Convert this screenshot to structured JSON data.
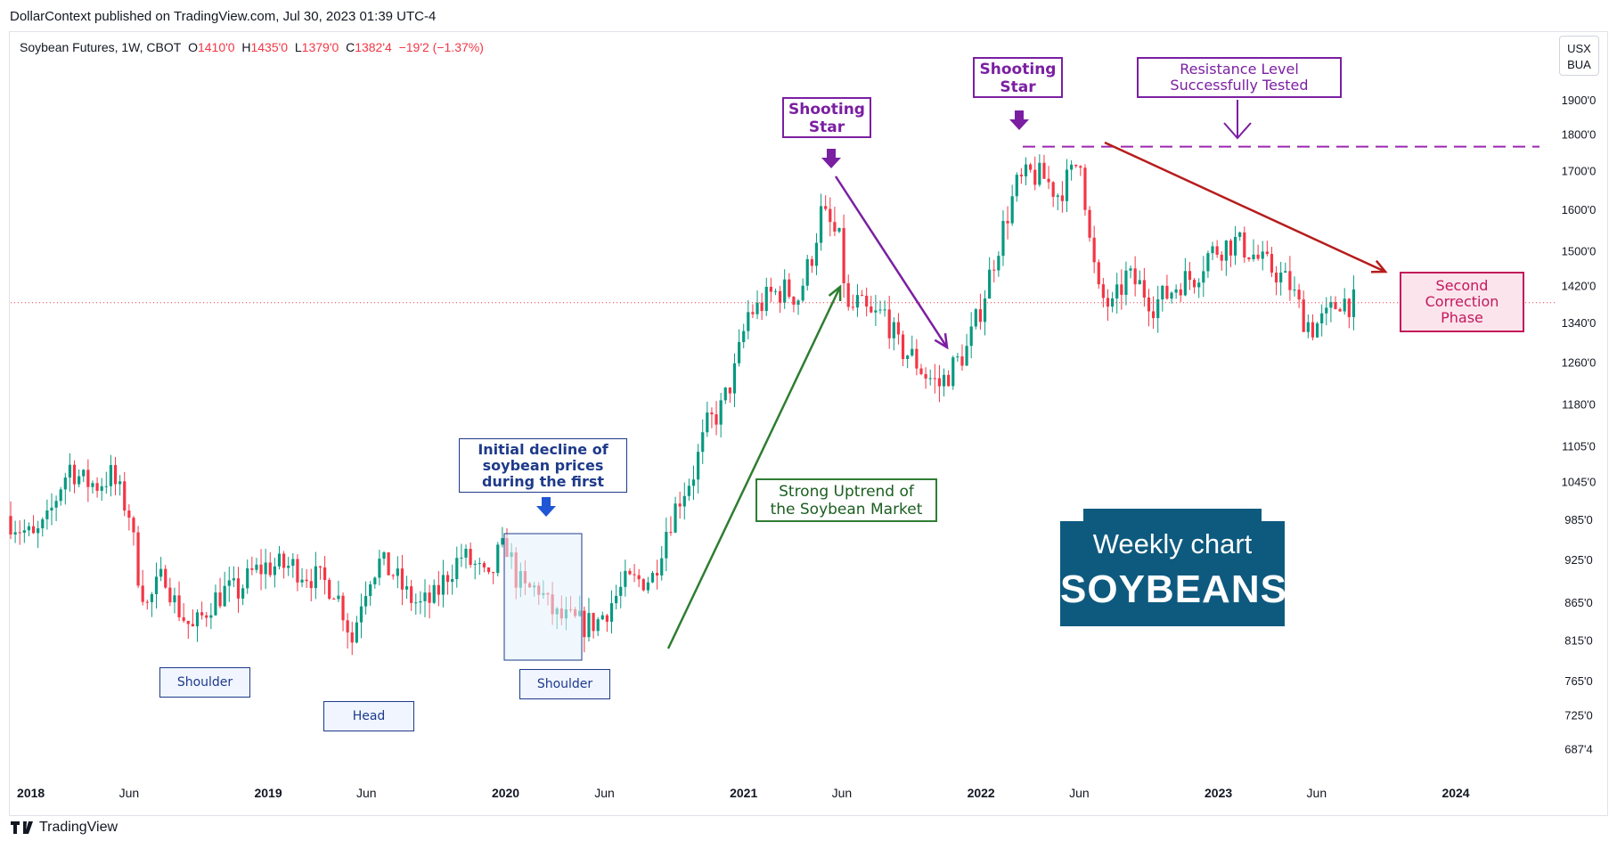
{
  "header": {
    "published_line": "DollarContext published on TradingView.com, Jul 30, 2023 01:39 UTC-4"
  },
  "legend": {
    "symbol": "Soybean Futures, 1W, CBOT",
    "open_label": "O",
    "open_value": "1410'0",
    "high_label": "H",
    "high_value": "1435'0",
    "low_label": "L",
    "low_value": "1379'0",
    "close_label": "C",
    "close_value": "1382'4",
    "change": "−19'2 (−1.37%)"
  },
  "currency": {
    "line1": "USX",
    "line2": "BUA"
  },
  "footer": {
    "brand": "TradingView"
  },
  "annotations": {
    "shooting_star_1": "Shooting Star",
    "shooting_star_2": "Shooting Star",
    "resistance": "Resistance Level Successfully Tested",
    "second_correction": "Second Correction Phase",
    "initial_decline": "Initial decline of soybean prices during the first",
    "strong_uptrend": "Strong Uptrend of the Soybean Market",
    "shoulder_left": "Shoulder",
    "head": "Head",
    "shoulder_right": "Shoulder",
    "brand_line1": "Weekly chart",
    "brand_line2": "SOYBEANS"
  },
  "colors": {
    "up": "#089981",
    "down": "#f23645",
    "purple": "#7b1fa2",
    "green": "#2e7d32",
    "red_arrow": "#b71c1c",
    "navy": "#0e5a7f",
    "blue_box": "#1e3a8a"
  },
  "chart_data": {
    "type": "candlestick",
    "title": "Soybean Futures, 1W, CBOT",
    "y_scale": "log",
    "ylim": [
      660,
      2000
    ],
    "y_ticks": [
      {
        "value": 1900,
        "label": "1900'0"
      },
      {
        "value": 1800,
        "label": "1800'0"
      },
      {
        "value": 1700,
        "label": "1700'0"
      },
      {
        "value": 1600,
        "label": "1600'0"
      },
      {
        "value": 1500,
        "label": "1500'0"
      },
      {
        "value": 1420,
        "label": "1420'0"
      },
      {
        "value": 1340,
        "label": "1340'0"
      },
      {
        "value": 1260,
        "label": "1260'0"
      },
      {
        "value": 1180,
        "label": "1180'0"
      },
      {
        "value": 1105,
        "label": "1105'0"
      },
      {
        "value": 1045,
        "label": "1045'0"
      },
      {
        "value": 985,
        "label": "985'0"
      },
      {
        "value": 925,
        "label": "925'0"
      },
      {
        "value": 865,
        "label": "865'0"
      },
      {
        "value": 815,
        "label": "815'0"
      },
      {
        "value": 765,
        "label": "765'0"
      },
      {
        "value": 725,
        "label": "725'0"
      },
      {
        "value": 687.5,
        "label": "687'4"
      }
    ],
    "x_ticks": [
      {
        "date": "2018-01-01",
        "label": "2018"
      },
      {
        "date": "2018-06-01",
        "label": "Jun"
      },
      {
        "date": "2019-01-01",
        "label": "2019"
      },
      {
        "date": "2019-06-01",
        "label": "Jun"
      },
      {
        "date": "2020-01-01",
        "label": "2020"
      },
      {
        "date": "2020-06-01",
        "label": "Jun"
      },
      {
        "date": "2021-01-01",
        "label": "2021"
      },
      {
        "date": "2021-06-01",
        "label": "Jun"
      },
      {
        "date": "2022-01-01",
        "label": "2022"
      },
      {
        "date": "2022-06-01",
        "label": "Jun"
      },
      {
        "date": "2023-01-01",
        "label": "2023"
      },
      {
        "date": "2023-06-01",
        "label": "Jun"
      },
      {
        "date": "2024-01-01",
        "label": "2024"
      }
    ],
    "xlim": [
      "2017-12-01",
      "2024-06-01"
    ],
    "last_price": 1382.5,
    "resistance_level": 1765,
    "price_path": [
      [
        "2017-12-01",
        990
      ],
      [
        "2017-12-22",
        972
      ],
      [
        "2018-01-12",
        955
      ],
      [
        "2018-02-02",
        980
      ],
      [
        "2018-02-23",
        1040
      ],
      [
        "2018-03-09",
        1070
      ],
      [
        "2018-03-30",
        1045
      ],
      [
        "2018-04-20",
        1040
      ],
      [
        "2018-05-11",
        1055
      ],
      [
        "2018-05-25",
        1025
      ],
      [
        "2018-06-08",
        995
      ],
      [
        "2018-06-22",
        905
      ],
      [
        "2018-07-06",
        860
      ],
      [
        "2018-07-20",
        885
      ],
      [
        "2018-08-03",
        905
      ],
      [
        "2018-08-17",
        865
      ],
      [
        "2018-08-31",
        845
      ],
      [
        "2018-09-14",
        828
      ],
      [
        "2018-09-28",
        845
      ],
      [
        "2018-10-12",
        865
      ],
      [
        "2018-11-02",
        880
      ],
      [
        "2018-11-23",
        880
      ],
      [
        "2018-12-14",
        905
      ],
      [
        "2019-01-04",
        915
      ],
      [
        "2019-01-25",
        915
      ],
      [
        "2019-02-15",
        915
      ],
      [
        "2019-03-08",
        905
      ],
      [
        "2019-03-29",
        895
      ],
      [
        "2019-04-19",
        885
      ],
      [
        "2019-05-03",
        855
      ],
      [
        "2019-05-17",
        815
      ],
      [
        "2019-05-31",
        870
      ],
      [
        "2019-06-14",
        905
      ],
      [
        "2019-06-28",
        920
      ],
      [
        "2019-07-19",
        905
      ],
      [
        "2019-08-09",
        875
      ],
      [
        "2019-08-30",
        860
      ],
      [
        "2019-09-20",
        870
      ],
      [
        "2019-10-11",
        905
      ],
      [
        "2019-11-01",
        930
      ],
      [
        "2019-11-22",
        915
      ],
      [
        "2019-12-13",
        890
      ],
      [
        "2019-12-27",
        930
      ],
      [
        "2020-01-10",
        945
      ],
      [
        "2020-01-24",
        900
      ],
      [
        "2020-02-07",
        880
      ],
      [
        "2020-02-28",
        885
      ],
      [
        "2020-03-13",
        860
      ],
      [
        "2020-03-27",
        845
      ],
      [
        "2020-04-17",
        840
      ],
      [
        "2020-05-08",
        835
      ],
      [
        "2020-05-29",
        840
      ],
      [
        "2020-06-19",
        865
      ],
      [
        "2020-07-10",
        890
      ],
      [
        "2020-07-31",
        895
      ],
      [
        "2020-08-21",
        900
      ],
      [
        "2020-09-11",
        970
      ],
      [
        "2020-10-02",
        1020
      ],
      [
        "2020-10-23",
        1060
      ],
      [
        "2020-11-13",
        1140
      ],
      [
        "2020-12-04",
        1170
      ],
      [
        "2020-12-25",
        1240
      ],
      [
        "2021-01-15",
        1360
      ],
      [
        "2021-01-29",
        1370
      ],
      [
        "2021-02-19",
        1400
      ],
      [
        "2021-03-12",
        1410
      ],
      [
        "2021-04-02",
        1395
      ],
      [
        "2021-04-23",
        1490
      ],
      [
        "2021-05-07",
        1590
      ],
      [
        "2021-05-21",
        1560
      ],
      [
        "2021-06-04",
        1520
      ],
      [
        "2021-06-18",
        1360
      ],
      [
        "2021-07-02",
        1380
      ],
      [
        "2021-07-23",
        1350
      ],
      [
        "2021-08-13",
        1360
      ],
      [
        "2021-09-03",
        1290
      ],
      [
        "2021-09-24",
        1270
      ],
      [
        "2021-10-15",
        1235
      ],
      [
        "2021-11-05",
        1215
      ],
      [
        "2021-11-26",
        1250
      ],
      [
        "2021-12-17",
        1285
      ],
      [
        "2022-01-07",
        1370
      ],
      [
        "2022-01-28",
        1480
      ],
      [
        "2022-02-18",
        1590
      ],
      [
        "2022-03-04",
        1660
      ],
      [
        "2022-03-25",
        1690
      ],
      [
        "2022-04-15",
        1680
      ],
      [
        "2022-05-06",
        1640
      ],
      [
        "2022-05-27",
        1690
      ],
      [
        "2022-06-10",
        1740
      ],
      [
        "2022-06-24",
        1520
      ],
      [
        "2022-07-08",
        1400
      ],
      [
        "2022-07-29",
        1370
      ],
      [
        "2022-08-19",
        1440
      ],
      [
        "2022-09-09",
        1420
      ],
      [
        "2022-09-30",
        1380
      ],
      [
        "2022-10-21",
        1400
      ],
      [
        "2022-11-11",
        1430
      ],
      [
        "2022-12-02",
        1440
      ],
      [
        "2022-12-23",
        1490
      ],
      [
        "2023-01-13",
        1510
      ],
      [
        "2023-02-03",
        1520
      ],
      [
        "2023-02-24",
        1500
      ],
      [
        "2023-03-17",
        1470
      ],
      [
        "2023-04-07",
        1450
      ],
      [
        "2023-04-28",
        1420
      ],
      [
        "2023-05-19",
        1350
      ],
      [
        "2023-06-02",
        1330
      ],
      [
        "2023-06-23",
        1350
      ],
      [
        "2023-07-14",
        1390
      ],
      [
        "2023-07-28",
        1382.5
      ]
    ]
  }
}
